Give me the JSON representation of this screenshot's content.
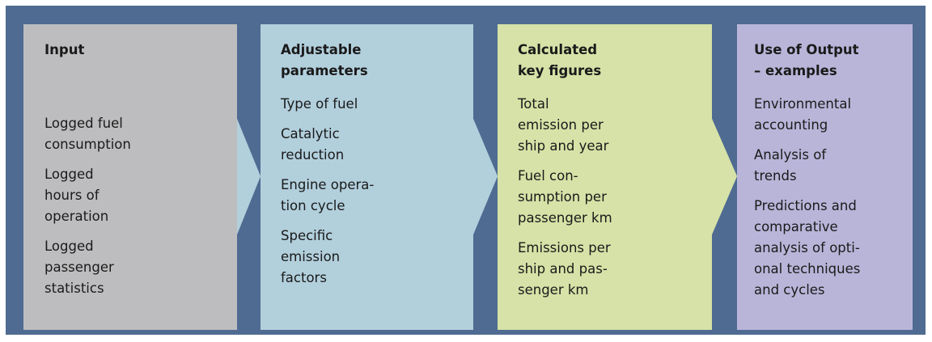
{
  "boxes": [
    {
      "title": [
        "Input"
      ],
      "items": [
        [
          "Logged fuel",
          "consumption"
        ],
        [
          "Logged",
          "hours of",
          "operation"
        ],
        [
          "Logged",
          "passenger",
          "statistics"
        ]
      ]
    },
    {
      "title": [
        "Adjustable",
        "parameters"
      ],
      "items": [
        [
          "Type of fuel"
        ],
        [
          "Catalytic",
          "reduction"
        ],
        [
          "Engine opera-",
          "tion cycle"
        ],
        [
          "Specific",
          "emission",
          "factors"
        ]
      ]
    },
    {
      "title": [
        "Calculated",
        "key figures"
      ],
      "items": [
        [
          "Total",
          "emission per",
          "ship and year"
        ],
        [
          "Fuel con-",
          "sumption per",
          "passenger km"
        ],
        [
          "Emissions per",
          "ship and pas-",
          "senger km"
        ]
      ]
    },
    {
      "title": [
        "Use of Output",
        "– examples"
      ],
      "items": [
        [
          "Environmental",
          "accounting"
        ],
        [
          "Analysis of",
          "trends"
        ],
        [
          "Predictions and",
          "comparative",
          "analysis of opti-",
          "onal techniques",
          "and cycles"
        ]
      ]
    }
  ]
}
